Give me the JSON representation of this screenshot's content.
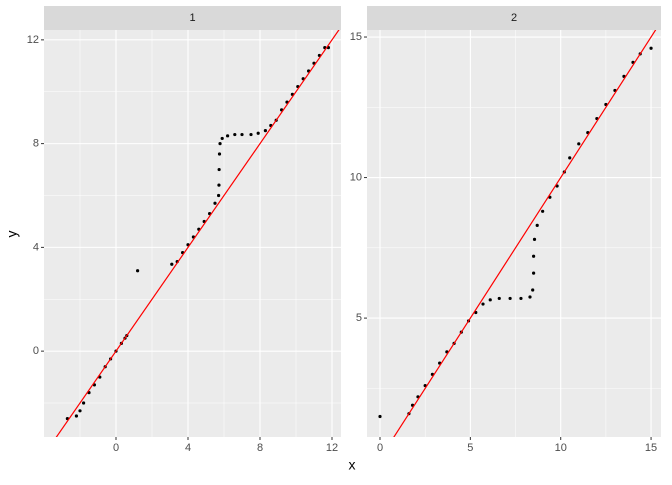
{
  "xlabel": "x",
  "ylabel": "y",
  "chart_data": [
    {
      "type": "scatter",
      "title": "1",
      "color": "#000000",
      "x": [
        -2.7,
        -2.2,
        -2.0,
        -1.8,
        -1.5,
        -1.2,
        -0.9,
        -0.6,
        -0.3,
        0,
        0.3,
        0.5,
        0.6,
        1.2,
        3.1,
        3.4,
        3.7,
        4.0,
        4.3,
        4.6,
        4.9,
        5.2,
        5.5,
        5.7,
        5.72,
        5.73,
        5.75,
        5.78,
        5.9,
        6.2,
        6.6,
        7.0,
        7.5,
        7.9,
        8.3,
        8.6,
        8.9,
        9.2,
        9.5,
        9.8,
        10.1,
        10.4,
        10.7,
        11.0,
        11.3,
        11.6,
        11.8
      ],
      "y": [
        -2.6,
        -2.5,
        -2.3,
        -2.0,
        -1.6,
        -1.3,
        -1.0,
        -0.6,
        -0.3,
        0,
        0.3,
        0.5,
        0.6,
        3.1,
        3.35,
        3.45,
        3.8,
        4.1,
        4.4,
        4.7,
        5.0,
        5.3,
        5.7,
        6.0,
        6.4,
        7.0,
        7.6,
        8.0,
        8.2,
        8.3,
        8.35,
        8.35,
        8.35,
        8.4,
        8.5,
        8.7,
        8.9,
        9.3,
        9.6,
        9.9,
        10.2,
        10.5,
        10.8,
        11.1,
        11.4,
        11.7,
        11.7
      ],
      "xlim": [
        -4,
        12.5
      ],
      "ylim": [
        -3.31,
        12.38
      ],
      "xticks": [
        0,
        4,
        8,
        12
      ],
      "yticks": [
        0,
        4,
        8,
        12
      ],
      "x_minor_ticks": [
        -2,
        2,
        6,
        10
      ],
      "y_minor_ticks": [
        -2,
        2,
        6,
        10
      ],
      "abline": {
        "intercept": 0,
        "slope": 1,
        "color": "#ff0000"
      }
    },
    {
      "type": "scatter",
      "title": "2",
      "color": "#000000",
      "x": [
        0,
        1.6,
        1.8,
        2.1,
        2.5,
        2.9,
        3.3,
        3.7,
        4.1,
        4.5,
        4.9,
        5.3,
        5.7,
        6.1,
        6.6,
        7.2,
        7.8,
        8.3,
        8.45,
        8.5,
        8.5,
        8.55,
        8.7,
        9.0,
        9.4,
        9.8,
        10.2,
        10.5,
        11.0,
        11.5,
        12.0,
        12.5,
        13.0,
        13.5,
        14.0,
        14.4,
        15.0
      ],
      "y": [
        1.5,
        1.6,
        1.9,
        2.2,
        2.6,
        3.0,
        3.4,
        3.8,
        4.1,
        4.5,
        4.9,
        5.2,
        5.5,
        5.65,
        5.7,
        5.7,
        5.7,
        5.75,
        6.0,
        6.6,
        7.2,
        7.8,
        8.3,
        8.8,
        9.3,
        9.7,
        10.2,
        10.7,
        11.2,
        11.6,
        12.1,
        12.6,
        13.1,
        13.6,
        14.1,
        14.4,
        14.6
      ],
      "xlim": [
        -0.72,
        15.55
      ],
      "ylim": [
        0.77,
        15.25
      ],
      "xticks": [
        0,
        5,
        10,
        15
      ],
      "yticks": [
        5,
        10,
        15
      ],
      "x_minor_ticks": [
        2.5,
        7.5,
        12.5
      ],
      "y_minor_ticks": [
        2.5,
        7.5,
        12.5
      ],
      "abline": {
        "intercept": 0,
        "slope": 1,
        "color": "#ff0000"
      }
    }
  ]
}
